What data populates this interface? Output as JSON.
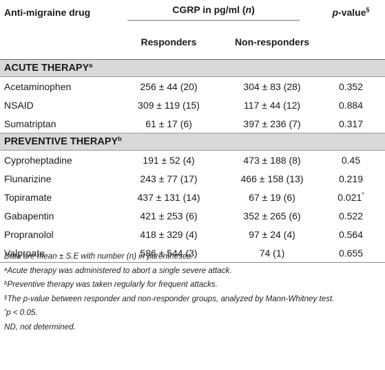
{
  "table": {
    "header": {
      "drug_label": "Anti-migraine drug",
      "cgrp_label_prefix": "CGRP in pg/ml (",
      "cgrp_label_n": "n",
      "cgrp_label_suffix": ")",
      "p_label_italic": "p",
      "p_label_suffix": "-value",
      "p_label_sup": "§",
      "responders_label": "Responders",
      "nonresponders_label": "Non-responders"
    },
    "acute": {
      "title": "ACUTE THERAPY",
      "sup": "a",
      "rows": [
        {
          "drug": "Acetaminophen",
          "responders": "256 ± 44 (20)",
          "nonresponders": "304 ± 83 (28)",
          "p": "0.352",
          "p_sup": ""
        },
        {
          "drug": "NSAID",
          "responders": "309 ± 119 (15)",
          "nonresponders": "117 ± 44 (12)",
          "p": "0.884",
          "p_sup": ""
        },
        {
          "drug": "Sumatriptan",
          "responders": "61 ± 17 (6)",
          "nonresponders": "397 ± 236 (7)",
          "p": "0.317",
          "p_sup": ""
        }
      ]
    },
    "preventive": {
      "title": "PREVENTIVE THERAPY",
      "sup": "b",
      "rows": [
        {
          "drug": "Cyproheptadine",
          "responders": "191 ± 52 (4)",
          "nonresponders": "473 ± 188 (8)",
          "p": "0.45",
          "p_sup": ""
        },
        {
          "drug": "Flunarizine",
          "responders": "243 ± 77 (17)",
          "nonresponders": "466 ± 158 (13)",
          "p": "0.219",
          "p_sup": ""
        },
        {
          "drug": "Topiramate",
          "responders": "437 ± 131 (14)",
          "nonresponders": "67 ± 19 (6)",
          "p": "0.021",
          "p_sup": "*"
        },
        {
          "drug": "Gabapentin",
          "responders": "421 ± 253 (6)",
          "nonresponders": "352 ± 265 (6)",
          "p": "0.522",
          "p_sup": ""
        },
        {
          "drug": "Propranolol",
          "responders": "418 ± 329 (4)",
          "nonresponders": "97 ± 24 (4)",
          "p": "0.564",
          "p_sup": ""
        },
        {
          "drug": "Valproate",
          "responders": "586 ± 544 (3)",
          "nonresponders": "74 (1)",
          "p": "0.655",
          "p_sup": ""
        }
      ]
    }
  },
  "notes": {
    "line1": "Data are mean ± S.E with number (n) in parentheses.",
    "line2_sup": "a",
    "line2": "Acute therapy was administered to abort a single severe attack.",
    "line3_sup": "b",
    "line3": "Preventive therapy was taken regularly for frequent attacks.",
    "line4_sup": "§",
    "line4": "The p-value between responder and non-responder groups, analyzed by Mann-Whitney test.",
    "line5_sup": "*",
    "line5": "p < 0.05.",
    "line6": "ND, not determined."
  }
}
